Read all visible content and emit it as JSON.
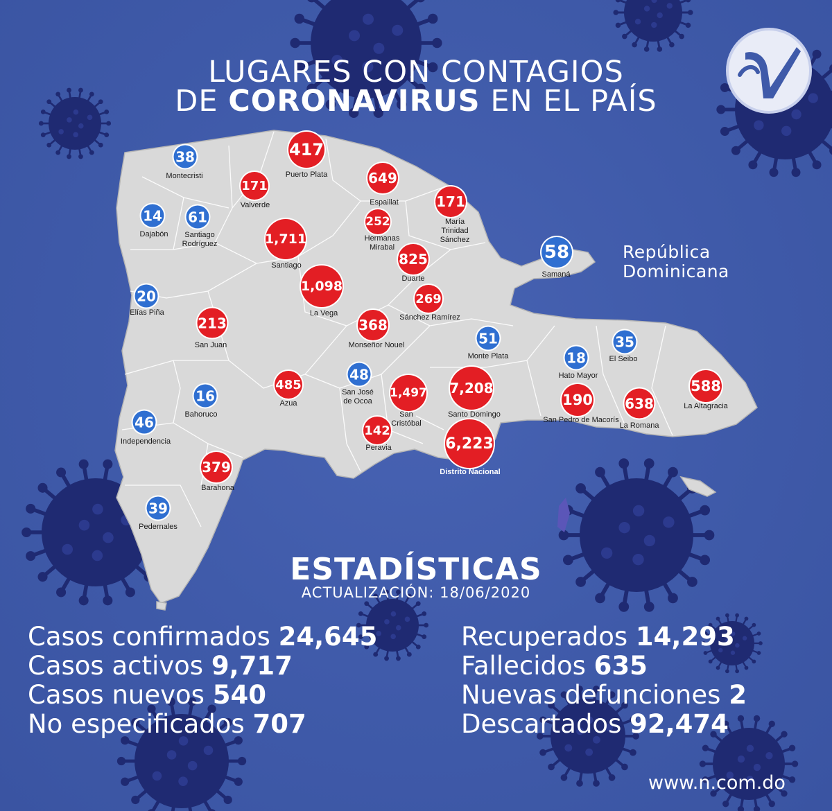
{
  "title": {
    "line1": "LUGARES CON CONTAGIOS",
    "line2_pre": "DE ",
    "line2_bold": "CORONAVIRUS",
    "line2_post": " EN EL PAÍS"
  },
  "country_label": {
    "line1": "República",
    "line2": "Dominicana"
  },
  "stats": {
    "heading": "ESTADÍSTICAS",
    "updated": "ACTUALIZACIÓN: 18/06/2020",
    "left": [
      {
        "label": "Casos confirmados",
        "value": "24,645"
      },
      {
        "label": "Casos activos",
        "value": "9,717"
      },
      {
        "label": "Casos nuevos",
        "value": "540"
      },
      {
        "label": "No especificados",
        "value": "707"
      }
    ],
    "right": [
      {
        "label": "Recuperados",
        "value": "14,293"
      },
      {
        "label": "Fallecidos",
        "value": "635"
      },
      {
        "label": "Nuevas defunciones",
        "value": "2"
      },
      {
        "label": "Descartados",
        "value": "92,474"
      }
    ]
  },
  "site_url": "www.n.com.do",
  "colors": {
    "background": "#3f5aa9",
    "land": "#d9d9d9",
    "high_cases": "#e31e24",
    "low_cases": "#2f6fd1",
    "virus": "#1f2a72"
  },
  "provinces": [
    {
      "name": "Montecristi",
      "cases": "38",
      "level": "low"
    },
    {
      "name": "Puerto Plata",
      "cases": "417",
      "level": "high"
    },
    {
      "name": "Valverde",
      "cases": "171",
      "level": "high"
    },
    {
      "name": "Espaillat",
      "cases": "649",
      "level": "high"
    },
    {
      "name": "Dajabón",
      "cases": "14",
      "level": "low"
    },
    {
      "name": "Santiago Rodríguez",
      "cases": "61",
      "level": "low"
    },
    {
      "name": "María Trinidad Sánchez",
      "cases": "171",
      "level": "high"
    },
    {
      "name": "Hermanas Mirabal",
      "cases": "252",
      "level": "high"
    },
    {
      "name": "Santiago",
      "cases": "1,711",
      "level": "high"
    },
    {
      "name": "Duarte",
      "cases": "825",
      "level": "high"
    },
    {
      "name": "Samaná",
      "cases": "58",
      "level": "low"
    },
    {
      "name": "Elías Piña",
      "cases": "20",
      "level": "low"
    },
    {
      "name": "La Vega",
      "cases": "1,098",
      "level": "high"
    },
    {
      "name": "Sánchez Ramírez",
      "cases": "269",
      "level": "high"
    },
    {
      "name": "San Juan",
      "cases": "213",
      "level": "high"
    },
    {
      "name": "Monseñor Nouel",
      "cases": "368",
      "level": "high"
    },
    {
      "name": "Monte Plata",
      "cases": "51",
      "level": "low"
    },
    {
      "name": "El Seibo",
      "cases": "35",
      "level": "low"
    },
    {
      "name": "Hato Mayor",
      "cases": "18",
      "level": "low"
    },
    {
      "name": "San José de Ocoa",
      "cases": "48",
      "level": "low"
    },
    {
      "name": "Azua",
      "cases": "485",
      "level": "high"
    },
    {
      "name": "San Cristóbal",
      "cases": "1,497",
      "level": "high"
    },
    {
      "name": "Santo Domingo",
      "cases": "7,208",
      "level": "high"
    },
    {
      "name": "La Altagracia",
      "cases": "588",
      "level": "high"
    },
    {
      "name": "Bahoruco",
      "cases": "16",
      "level": "low"
    },
    {
      "name": "San Pedro de Macorís",
      "cases": "190",
      "level": "high"
    },
    {
      "name": "La Romana",
      "cases": "638",
      "level": "high"
    },
    {
      "name": "Independencia",
      "cases": "46",
      "level": "low"
    },
    {
      "name": "Peravia",
      "cases": "142",
      "level": "high"
    },
    {
      "name": "Distrito Nacional",
      "cases": "6,223",
      "level": "high"
    },
    {
      "name": "Barahona",
      "cases": "379",
      "level": "high"
    },
    {
      "name": "Pedernales",
      "cases": "39",
      "level": "low"
    }
  ]
}
